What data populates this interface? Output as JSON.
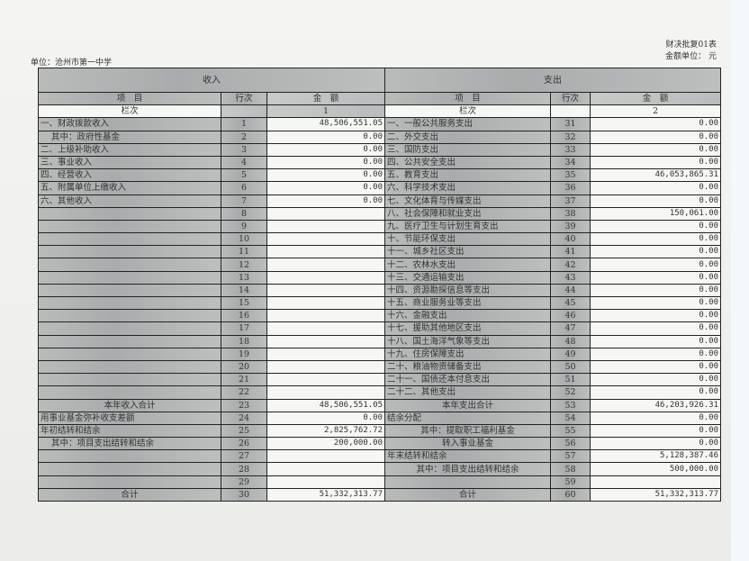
{
  "unit_label": "单位：沧州市第一中学",
  "form_code": "财决批复01表",
  "currency_label": "金额单位： 元",
  "income_header": "收入",
  "expense_header": "支出",
  "col_item": "项　目",
  "col_line": "行次",
  "col_amount": "金　额",
  "col_index_label": "栏次",
  "income_col_index": "1",
  "expense_col_index": "2",
  "rows": [
    {
      "in_label": "一、财政拨款收入",
      "in_no": "1",
      "in_amt": "48,506,551.05",
      "ex_label": "一、一般公共服务支出",
      "ex_no": "31",
      "ex_amt": "0.00"
    },
    {
      "in_label": "其中：政府性基金",
      "in_no": "2",
      "in_amt": "0.00",
      "ex_label": "二、外交支出",
      "ex_no": "32",
      "ex_amt": "0.00"
    },
    {
      "in_label": "二、上级补助收入",
      "in_no": "3",
      "in_amt": "0.00",
      "ex_label": "三、国防支出",
      "ex_no": "33",
      "ex_amt": "0.00"
    },
    {
      "in_label": "三、事业收入",
      "in_no": "4",
      "in_amt": "0.00",
      "ex_label": "四、公共安全支出",
      "ex_no": "34",
      "ex_amt": "0.00"
    },
    {
      "in_label": "四、经营收入",
      "in_no": "5",
      "in_amt": "0.00",
      "ex_label": "五、教育支出",
      "ex_no": "35",
      "ex_amt": "46,053,865.31"
    },
    {
      "in_label": "五、附属单位上缴收入",
      "in_no": "6",
      "in_amt": "0.00",
      "ex_label": "六、科学技术支出",
      "ex_no": "36",
      "ex_amt": "0.00"
    },
    {
      "in_label": "六、其他收入",
      "in_no": "7",
      "in_amt": "0.00",
      "ex_label": "七、文化体育与传媒支出",
      "ex_no": "37",
      "ex_amt": "0.00"
    },
    {
      "in_label": "",
      "in_no": "8",
      "in_amt": "",
      "ex_label": "八、社会保障和就业支出",
      "ex_no": "38",
      "ex_amt": "150,061.00"
    },
    {
      "in_label": "",
      "in_no": "9",
      "in_amt": "",
      "ex_label": "九、医疗卫生与计划生育支出",
      "ex_no": "39",
      "ex_amt": "0.00"
    },
    {
      "in_label": "",
      "in_no": "10",
      "in_amt": "",
      "ex_label": "十、节能环保支出",
      "ex_no": "40",
      "ex_amt": "0.00"
    },
    {
      "in_label": "",
      "in_no": "11",
      "in_amt": "",
      "ex_label": "十一、城乡社区支出",
      "ex_no": "41",
      "ex_amt": "0.00"
    },
    {
      "in_label": "",
      "in_no": "12",
      "in_amt": "",
      "ex_label": "十二、农林水支出",
      "ex_no": "42",
      "ex_amt": "0.00"
    },
    {
      "in_label": "",
      "in_no": "13",
      "in_amt": "",
      "ex_label": "十三、交通运输支出",
      "ex_no": "43",
      "ex_amt": "0.00"
    },
    {
      "in_label": "",
      "in_no": "14",
      "in_amt": "",
      "ex_label": "十四、资源勘探信息等支出",
      "ex_no": "44",
      "ex_amt": "0.00"
    },
    {
      "in_label": "",
      "in_no": "15",
      "in_amt": "",
      "ex_label": "十五、商业服务业等支出",
      "ex_no": "45",
      "ex_amt": "0.00"
    },
    {
      "in_label": "",
      "in_no": "16",
      "in_amt": "",
      "ex_label": "十六、金融支出",
      "ex_no": "46",
      "ex_amt": "0.00"
    },
    {
      "in_label": "",
      "in_no": "17",
      "in_amt": "",
      "ex_label": "十七、援助其他地区支出",
      "ex_no": "47",
      "ex_amt": "0.00"
    },
    {
      "in_label": "",
      "in_no": "18",
      "in_amt": "",
      "ex_label": "十八、国土海洋气象等支出",
      "ex_no": "48",
      "ex_amt": "0.00"
    },
    {
      "in_label": "",
      "in_no": "19",
      "in_amt": "",
      "ex_label": "十九、住房保障支出",
      "ex_no": "49",
      "ex_amt": "0.00"
    },
    {
      "in_label": "",
      "in_no": "20",
      "in_amt": "",
      "ex_label": "二十、粮油物资储备支出",
      "ex_no": "50",
      "ex_amt": "0.00"
    },
    {
      "in_label": "",
      "in_no": "21",
      "in_amt": "",
      "ex_label": "二十一、国债还本付息支出",
      "ex_no": "51",
      "ex_amt": "0.00"
    },
    {
      "in_label": "",
      "in_no": "22",
      "in_amt": "",
      "ex_label": "二十二、其他支出",
      "ex_no": "52",
      "ex_amt": "0.00"
    },
    {
      "in_label": "本年收入合计",
      "in_no": "23",
      "in_amt": "48,506,551.05",
      "ex_label": "本年支出合计",
      "ex_no": "53",
      "ex_amt": "46,203,926.31"
    },
    {
      "in_label": "用事业基金弥补收支差额",
      "in_no": "24",
      "in_amt": "0.00",
      "ex_label": "结余分配",
      "ex_no": "54",
      "ex_amt": "0.00"
    },
    {
      "in_label": "年初结转和结余",
      "in_no": "25",
      "in_amt": "2,825,762.72",
      "ex_label": "其中：提取职工福利基金",
      "ex_no": "55",
      "ex_amt": "0.00"
    },
    {
      "in_label": "其中：项目支出结转和结余",
      "in_no": "26",
      "in_amt": "200,000.00",
      "ex_label": "转入事业基金",
      "ex_no": "56",
      "ex_amt": "0.00"
    },
    {
      "in_label": "",
      "in_no": "27",
      "in_amt": "",
      "ex_label": "年末结转和结余",
      "ex_no": "57",
      "ex_amt": "5,128,387.46"
    },
    {
      "in_label": "",
      "in_no": "28",
      "in_amt": "",
      "ex_label": "其中：项目支出结转和结余",
      "ex_no": "58",
      "ex_amt": "500,000.00"
    },
    {
      "in_label": "",
      "in_no": "29",
      "in_amt": "",
      "ex_label": "",
      "ex_no": "59",
      "ex_amt": ""
    },
    {
      "in_label": "合计",
      "in_no": "30",
      "in_amt": "51,332,313.77",
      "ex_label": "合计",
      "ex_no": "60",
      "ex_amt": "51,332,313.77"
    }
  ]
}
